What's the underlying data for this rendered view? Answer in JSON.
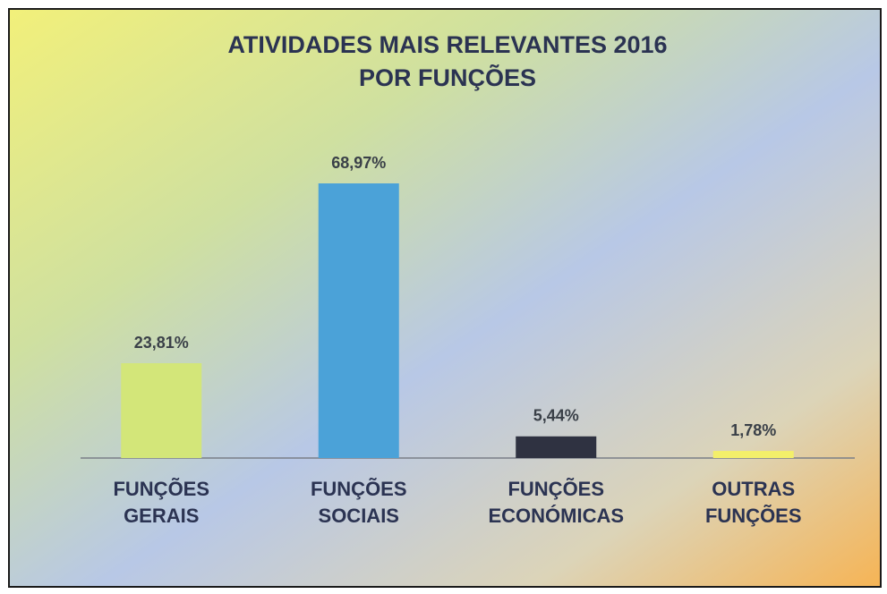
{
  "chart_data": {
    "type": "bar",
    "title": [
      "ATIVIDADES MAIS RELEVANTES 2016",
      "POR FUNÇÕES"
    ],
    "categories": [
      [
        "FUNÇÕES",
        "GERAIS"
      ],
      [
        "FUNÇÕES",
        "SOCIAIS"
      ],
      [
        "FUNÇÕES",
        "ECONÓMICAS"
      ],
      [
        "OUTRAS",
        "FUNÇÕES"
      ]
    ],
    "values": [
      23.81,
      68.97,
      5.44,
      1.78
    ],
    "value_labels": [
      "23,81%",
      "68,97%",
      "5,44%",
      "1,78%"
    ],
    "colors": [
      "#d3e679",
      "#4ba2d8",
      "#2f3241",
      "#f3ef6a"
    ]
  }
}
